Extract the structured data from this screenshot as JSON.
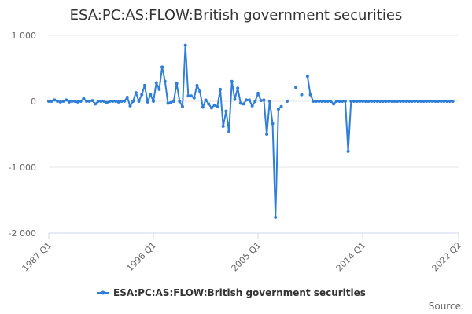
{
  "chart_data": {
    "type": "line",
    "title": "ESA:PC:AS:FLOW:British government securities",
    "xlabel": "",
    "ylabel": "",
    "ylim": [
      -2000,
      1000
    ],
    "yticks": [
      1000,
      0,
      -1000,
      -2000
    ],
    "ytick_labels": [
      "1 000",
      "0",
      "-1 000",
      "-2 000"
    ],
    "xticks": [
      "1987 Q1",
      "1996 Q1",
      "2005 Q1",
      "2014 Q1",
      "2022 Q2"
    ],
    "x_range": [
      "1987 Q1",
      "2022 Q2"
    ],
    "grid": "horizontal",
    "legend_position": "bottom",
    "credit": "Source:",
    "colors": {
      "series": "#2f7ed8",
      "grid": "#e6e6e6",
      "axis": "#ccd6eb"
    },
    "series": [
      {
        "name": "ESA:PC:AS:FLOW:British government securities",
        "x": [
          "1987 Q1",
          "1987 Q2",
          "1987 Q3",
          "1987 Q4",
          "1988 Q1",
          "1988 Q2",
          "1988 Q3",
          "1988 Q4",
          "1989 Q1",
          "1989 Q2",
          "1989 Q3",
          "1989 Q4",
          "1990 Q1",
          "1990 Q2",
          "1990 Q3",
          "1990 Q4",
          "1991 Q1",
          "1991 Q2",
          "1991 Q3",
          "1991 Q4",
          "1992 Q1",
          "1992 Q2",
          "1992 Q3",
          "1992 Q4",
          "1993 Q1",
          "1993 Q2",
          "1993 Q3",
          "1993 Q4",
          "1994 Q1",
          "1994 Q2",
          "1994 Q3",
          "1994 Q4",
          "1995 Q1",
          "1995 Q2",
          "1995 Q3",
          "1995 Q4",
          "1996 Q1",
          "1996 Q2",
          "1996 Q3",
          "1996 Q4",
          "1997 Q1",
          "1997 Q2",
          "1997 Q3",
          "1997 Q4",
          "1998 Q1",
          "1998 Q2",
          "1998 Q3",
          "1998 Q4",
          "1999 Q1",
          "1999 Q2",
          "1999 Q3",
          "1999 Q4",
          "2000 Q1",
          "2000 Q2",
          "2000 Q3",
          "2000 Q4",
          "2001 Q1",
          "2001 Q2",
          "2001 Q3",
          "2001 Q4",
          "2002 Q1",
          "2002 Q2",
          "2002 Q3",
          "2002 Q4",
          "2003 Q1",
          "2003 Q2",
          "2003 Q3",
          "2003 Q4",
          "2004 Q1",
          "2004 Q2",
          "2004 Q3",
          "2004 Q4",
          "2005 Q1",
          "2005 Q2",
          "2005 Q3",
          "2005 Q4",
          "2006 Q1",
          "2006 Q2",
          "2006 Q3",
          "2006 Q4",
          "2007 Q1",
          "2007 Q2",
          "2007 Q3",
          "2007 Q4",
          "2008 Q1",
          "2008 Q2",
          "2008 Q3",
          "2008 Q4",
          "2009 Q1",
          "2009 Q2",
          "2009 Q3",
          "2009 Q4",
          "2010 Q1",
          "2010 Q2",
          "2010 Q3",
          "2010 Q4",
          "2011 Q1",
          "2011 Q2",
          "2011 Q3",
          "2011 Q4",
          "2012 Q1",
          "2012 Q2",
          "2012 Q3",
          "2012 Q4",
          "2013 Q1",
          "2013 Q2",
          "2013 Q3",
          "2013 Q4",
          "2014 Q1",
          "2014 Q2",
          "2014 Q3",
          "2014 Q4",
          "2015 Q1",
          "2015 Q2",
          "2015 Q3",
          "2015 Q4",
          "2016 Q1",
          "2016 Q2",
          "2016 Q3",
          "2016 Q4",
          "2017 Q1",
          "2017 Q2",
          "2017 Q3",
          "2017 Q4",
          "2018 Q1",
          "2018 Q2",
          "2018 Q3",
          "2018 Q4",
          "2019 Q1",
          "2019 Q2",
          "2019 Q3",
          "2019 Q4",
          "2020 Q1",
          "2020 Q2",
          "2020 Q3",
          "2020 Q4",
          "2021 Q1",
          "2021 Q2",
          "2021 Q3",
          "2021 Q4"
        ],
        "values": [
          0,
          0,
          20,
          0,
          -10,
          0,
          20,
          -10,
          0,
          0,
          -10,
          0,
          40,
          0,
          0,
          10,
          -40,
          0,
          0,
          0,
          -20,
          0,
          0,
          0,
          -10,
          0,
          0,
          60,
          -70,
          0,
          130,
          0,
          100,
          240,
          -10,
          100,
          0,
          280,
          180,
          520,
          300,
          -30,
          -20,
          0,
          270,
          0,
          -80,
          850,
          80,
          80,
          50,
          240,
          150,
          -90,
          20,
          -40,
          -100,
          -60,
          -80,
          180,
          -380,
          -150,
          -460,
          300,
          30,
          200,
          -30,
          -40,
          20,
          20,
          -70,
          0,
          120,
          10,
          20,
          -500,
          0,
          -340,
          -1760,
          -120,
          -80,
          null,
          0,
          null,
          null,
          210,
          null,
          100,
          null,
          380,
          100,
          0,
          0,
          0,
          0,
          0,
          0,
          0,
          -40,
          0,
          0,
          0,
          0,
          -760,
          0,
          0,
          0,
          0,
          0,
          0,
          0,
          0,
          0,
          0,
          0,
          0,
          0,
          0,
          0,
          0,
          0,
          0,
          0,
          0,
          0,
          0,
          0,
          0,
          0,
          0,
          0,
          0,
          0,
          0,
          0,
          0,
          0,
          0,
          0,
          0
        ]
      }
    ]
  }
}
